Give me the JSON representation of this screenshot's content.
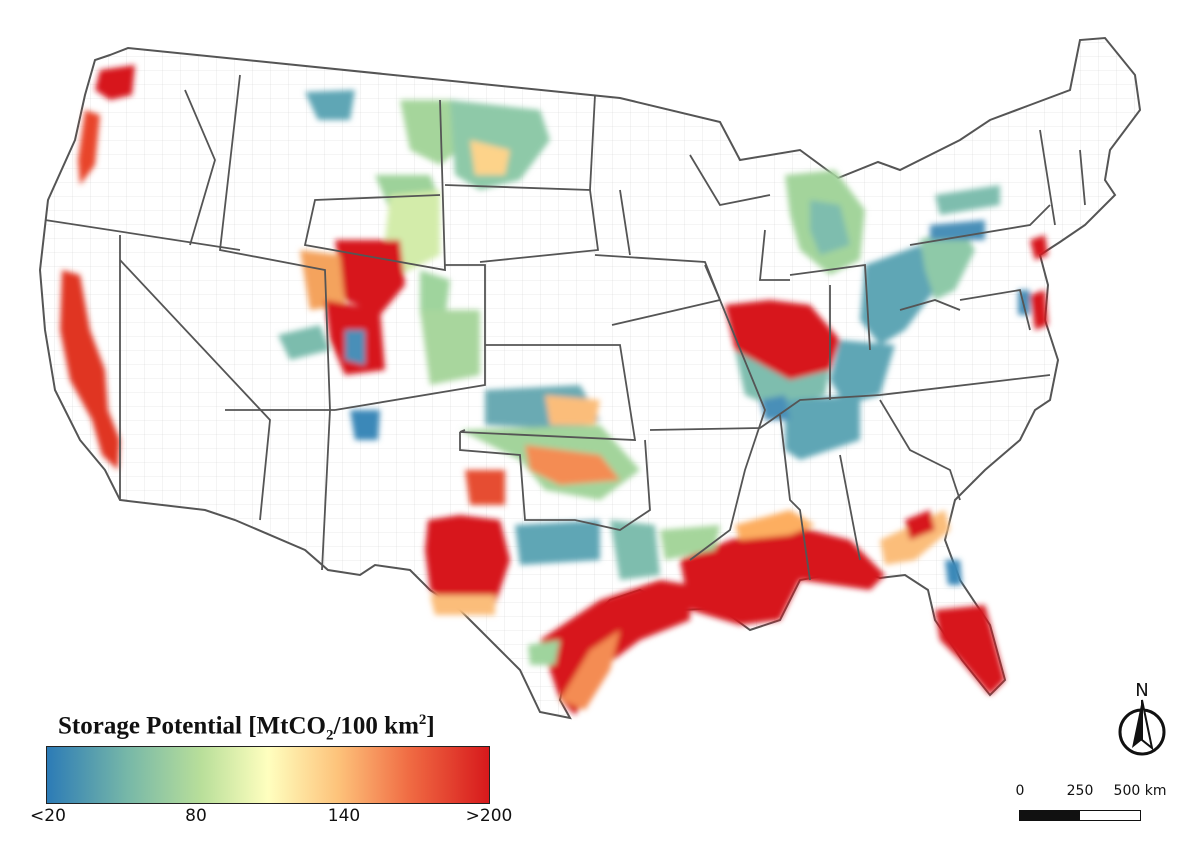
{
  "legend": {
    "title_main": "Storage Potential [MtCO",
    "title_sub": "2",
    "title_mid": "/100 km",
    "title_sup": "2",
    "title_end": "]",
    "ticks": [
      "<20",
      "80",
      "140",
      ">200"
    ],
    "colors": [
      "#2c7bb6",
      "#abd9e9",
      "#ffffbf",
      "#fdae61",
      "#d7191c"
    ]
  },
  "north_arrow": {
    "label": "N",
    "icon": "north-arrow-icon"
  },
  "scale_bar": {
    "labels": [
      "0",
      "250",
      "500 km"
    ]
  },
  "map": {
    "boundary_color": "#555555",
    "county_color": "#cfcfcf"
  }
}
